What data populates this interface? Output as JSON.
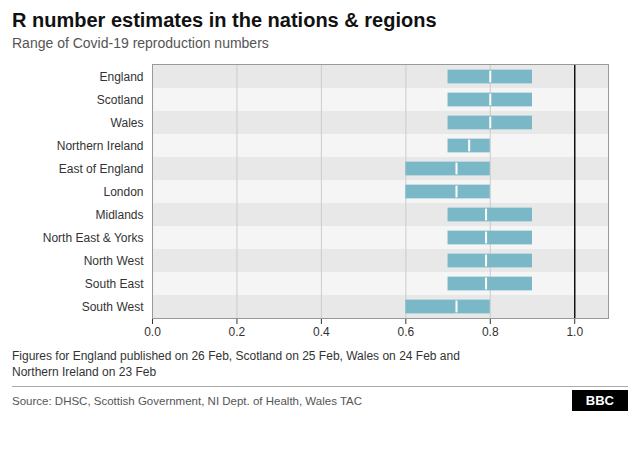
{
  "chart_data": {
    "type": "bar",
    "orientation": "horizontal",
    "title": "R number estimates in the nations & regions",
    "subtitle": "Range of Covid-19 reproduction numbers",
    "categories": [
      "England",
      "Scotland",
      "Wales",
      "Northern Ireland",
      "East of England",
      "London",
      "Midlands",
      "North East & Yorks",
      "North West",
      "South East",
      "South West"
    ],
    "values": [
      [
        0.7,
        0.9
      ],
      [
        0.7,
        0.9
      ],
      [
        0.7,
        0.9
      ],
      [
        0.7,
        0.8
      ],
      [
        0.6,
        0.8
      ],
      [
        0.6,
        0.8
      ],
      [
        0.7,
        0.9
      ],
      [
        0.7,
        0.9
      ],
      [
        0.7,
        0.9
      ],
      [
        0.7,
        0.9
      ],
      [
        0.6,
        0.8
      ]
    ],
    "color": "#7ab8c8",
    "midpoints": {
      "values": [
        0.8,
        0.8,
        0.8,
        0.75,
        0.72,
        0.72,
        0.79,
        0.79,
        0.79,
        0.79,
        0.72
      ],
      "color": "#ffffff"
    },
    "reference_line": {
      "value": 1.0,
      "color": "#111111"
    },
    "xlim": [
      0.0,
      1.08
    ],
    "xticks": [
      {
        "value": 0.0,
        "label": "0.0"
      },
      {
        "value": 0.2,
        "label": "0.2"
      },
      {
        "value": 0.4,
        "label": "0.4"
      },
      {
        "value": 0.6,
        "label": "0.6"
      },
      {
        "value": 0.8,
        "label": "0.8"
      },
      {
        "value": 1.0,
        "label": "1.0"
      }
    ],
    "grid": true,
    "footnote": "Figures for England published on 26 Feb, Scotland on 25 Feb, Wales on 24 Feb and\nNorthern Ireland on 23 Feb",
    "source": "Source: DHSC, Scottish Government, NI Dept. of Health, Wales TAC",
    "logo": "BBC"
  }
}
